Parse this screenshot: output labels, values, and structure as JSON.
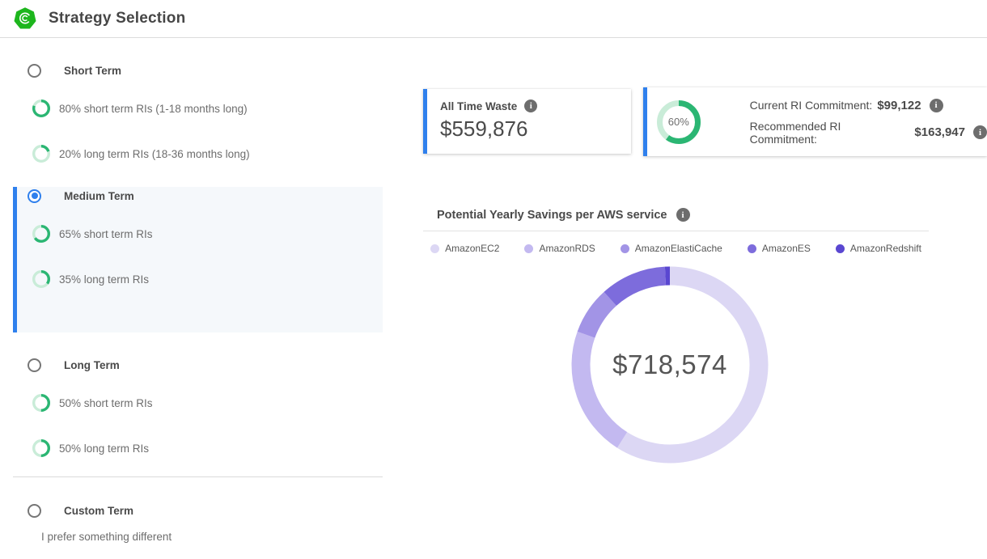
{
  "header": {
    "title": "Strategy Selection"
  },
  "strategies": {
    "options": [
      {
        "label": "Short Term",
        "selected": false,
        "subs": [
          {
            "percent": 80,
            "label": "80% short term RIs (1-18 months long)"
          },
          {
            "percent": 20,
            "label": "20% long term RIs (18-36 months long)"
          }
        ]
      },
      {
        "label": "Medium Term",
        "selected": true,
        "subs": [
          {
            "percent": 65,
            "label": "65% short term RIs"
          },
          {
            "percent": 35,
            "label": "35% long term RIs"
          }
        ]
      },
      {
        "label": "Long Term",
        "selected": false,
        "subs": [
          {
            "percent": 50,
            "label": "50% short term RIs"
          },
          {
            "percent": 50,
            "label": "50% long term RIs"
          }
        ]
      },
      {
        "label": "Custom Term",
        "selected": false,
        "description": "I prefer something different",
        "subs": []
      }
    ]
  },
  "cards": {
    "waste": {
      "title": "All Time Waste",
      "value": "$559,876"
    },
    "commitment": {
      "ring_percent": 60,
      "ring_label": "60%",
      "current_label": "Current RI Commitment:",
      "current_value": "$99,122",
      "recommended_label": "Recommended RI Commitment:",
      "recommended_value": "$163,947"
    }
  },
  "chart": {
    "title": "Potential Yearly Savings per AWS service",
    "center_value": "$718,574"
  },
  "chart_data": {
    "type": "pie",
    "donut": true,
    "title": "Potential Yearly Savings per AWS service",
    "center_total": "$718,574",
    "legend_position": "top",
    "series": [
      {
        "name": "AmazonEC2",
        "percent": 59.0,
        "color": "#dcd7f4"
      },
      {
        "name": "AmazonRDS",
        "percent": 21.5,
        "color": "#c3b9f0"
      },
      {
        "name": "AmazonElastiCache",
        "percent": 7.8,
        "color": "#a294e6"
      },
      {
        "name": "AmazonES",
        "percent": 10.9,
        "color": "#7d6cdc"
      },
      {
        "name": "AmazonRedshift",
        "percent": 0.8,
        "color": "#5a47d1"
      }
    ]
  },
  "colors": {
    "accent_blue": "#2f80ed",
    "ring_green": "#2bb673",
    "ring_green_light": "#c9ecd8"
  }
}
